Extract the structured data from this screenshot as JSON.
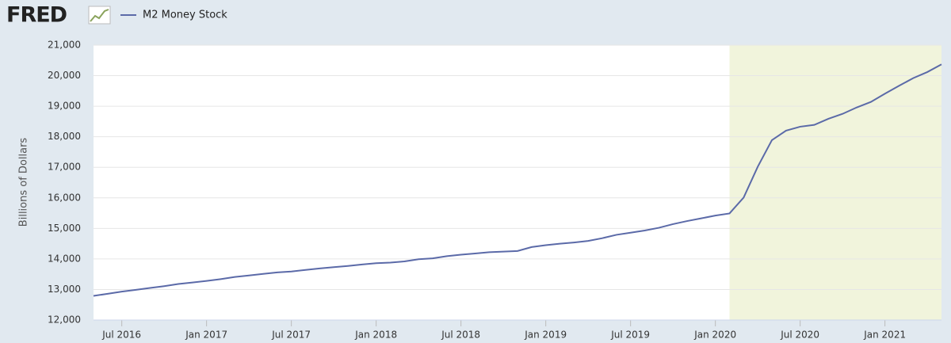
{
  "chart_data": {
    "type": "line",
    "brand": "FRED",
    "y_label": "Billions of Dollars",
    "x": [
      "2016-05",
      "2016-06",
      "2016-07",
      "2016-08",
      "2016-09",
      "2016-10",
      "2016-11",
      "2016-12",
      "2017-01",
      "2017-02",
      "2017-03",
      "2017-04",
      "2017-05",
      "2017-06",
      "2017-07",
      "2017-08",
      "2017-09",
      "2017-10",
      "2017-11",
      "2017-12",
      "2018-01",
      "2018-02",
      "2018-03",
      "2018-04",
      "2018-05",
      "2018-06",
      "2018-07",
      "2018-08",
      "2018-09",
      "2018-10",
      "2018-11",
      "2018-12",
      "2019-01",
      "2019-02",
      "2019-03",
      "2019-04",
      "2019-05",
      "2019-06",
      "2019-07",
      "2019-08",
      "2019-09",
      "2019-10",
      "2019-11",
      "2019-12",
      "2020-01",
      "2020-02",
      "2020-03",
      "2020-04",
      "2020-05",
      "2020-06",
      "2020-07",
      "2020-08",
      "2020-09",
      "2020-10",
      "2020-11",
      "2020-12",
      "2021-01",
      "2021-02",
      "2021-03",
      "2021-04",
      "2021-05"
    ],
    "series": [
      {
        "name": "M2 Money Stock",
        "color": "#5b6aa8",
        "values": [
          12790,
          12860,
          12930,
          12990,
          13050,
          13110,
          13180,
          13230,
          13280,
          13340,
          13410,
          13460,
          13510,
          13560,
          13590,
          13640,
          13690,
          13730,
          13770,
          13820,
          13860,
          13880,
          13920,
          13990,
          14020,
          14090,
          14140,
          14180,
          14220,
          14240,
          14260,
          14390,
          14450,
          14500,
          14540,
          14590,
          14680,
          14790,
          14860,
          14930,
          15020,
          15140,
          15240,
          15330,
          15420,
          15490,
          16010,
          17020,
          17890,
          18200,
          18330,
          18390,
          18590,
          18750,
          18960,
          19140,
          19410,
          19670,
          19920,
          20120,
          20370
        ]
      }
    ],
    "xlim": [
      "2016-05",
      "2021-05"
    ],
    "xticks": [
      {
        "value": "2016-07",
        "label": "Jul 2016"
      },
      {
        "value": "2017-01",
        "label": "Jan 2017"
      },
      {
        "value": "2017-07",
        "label": "Jul 2017"
      },
      {
        "value": "2018-01",
        "label": "Jan 2018"
      },
      {
        "value": "2018-07",
        "label": "Jul 2018"
      },
      {
        "value": "2019-01",
        "label": "Jan 2019"
      },
      {
        "value": "2019-07",
        "label": "Jul 2019"
      },
      {
        "value": "2020-01",
        "label": "Jan 2020"
      },
      {
        "value": "2020-07",
        "label": "Jul 2020"
      },
      {
        "value": "2021-01",
        "label": "Jan 2021"
      }
    ],
    "ylim": [
      12000,
      21000
    ],
    "yticks": [
      {
        "value": 12000,
        "label": "12,000"
      },
      {
        "value": 13000,
        "label": "13,000"
      },
      {
        "value": 14000,
        "label": "14,000"
      },
      {
        "value": 15000,
        "label": "15,000"
      },
      {
        "value": 16000,
        "label": "16,000"
      },
      {
        "value": 17000,
        "label": "17,000"
      },
      {
        "value": 18000,
        "label": "18,000"
      },
      {
        "value": 19000,
        "label": "19,000"
      },
      {
        "value": 20000,
        "label": "20,000"
      },
      {
        "value": 21000,
        "label": "21,000"
      }
    ],
    "grid": true,
    "recession": {
      "start": "2020-02",
      "end": "2021-05",
      "color": "#f1f4dc"
    }
  }
}
